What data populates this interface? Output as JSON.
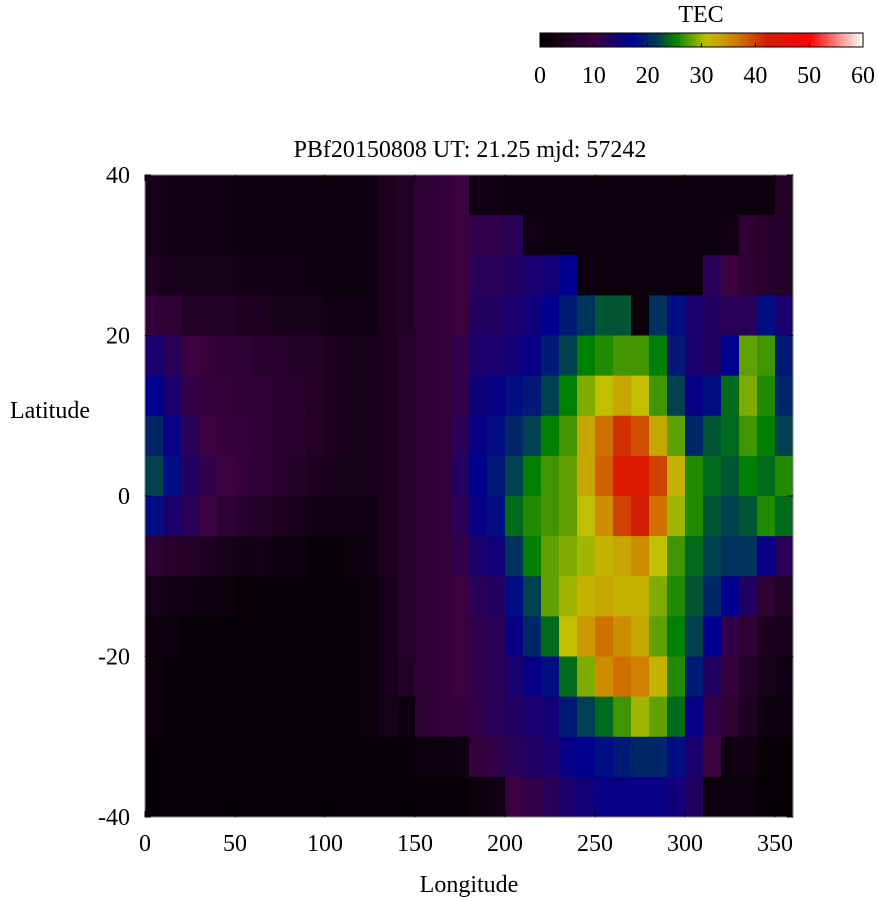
{
  "chart_data": {
    "type": "heatmap",
    "title": "PBf20150808  UT: 21.25  mjd: 57242",
    "xlabel": "Longitude",
    "ylabel": "Latitude",
    "xlim": [
      0,
      360
    ],
    "ylim": [
      -40,
      40
    ],
    "xticks": [
      "0",
      "50",
      "100",
      "150",
      "200",
      "250",
      "300",
      "350"
    ],
    "yticks": [
      "40",
      "20",
      "0",
      "-20",
      "-40"
    ],
    "colorbar": {
      "label": "TEC",
      "range": [
        0,
        60
      ],
      "ticks": [
        "0",
        "10",
        "20",
        "30",
        "40",
        "50",
        "60"
      ],
      "stops": [
        [
          0,
          "#000000"
        ],
        [
          10,
          "#3a0040"
        ],
        [
          17,
          "#000090"
        ],
        [
          22,
          "#004050"
        ],
        [
          25,
          "#008000"
        ],
        [
          31,
          "#c0c000"
        ],
        [
          36,
          "#d08000"
        ],
        [
          42,
          "#d02000"
        ],
        [
          50,
          "#ff0000"
        ],
        [
          60,
          "#ffffff"
        ]
      ]
    },
    "lon_edges_step": 10,
    "lat_edges_step": 5,
    "lat_rows_from_top": [
      "40..35",
      "35..30",
      "30..25",
      "25..20",
      "20..15",
      "15..10",
      "10..5",
      "5..0",
      "0..-5",
      "-5..-10",
      "-10..-15",
      "-15..-20",
      "-20..-25",
      "-25..-30",
      "-30..-35",
      "-35..-40"
    ],
    "values_by_lon_column": [
      [
        4,
        4,
        5,
        9,
        14,
        17,
        20,
        22,
        18,
        8,
        4,
        2,
        2,
        2,
        1,
        1
      ],
      [
        3,
        3,
        4,
        8,
        12,
        14,
        16,
        18,
        14,
        7,
        3,
        2,
        1,
        1,
        1,
        1
      ],
      [
        3,
        3,
        4,
        6,
        10,
        11,
        12,
        13,
        12,
        6,
        3,
        1,
        1,
        1,
        1,
        1
      ],
      [
        3,
        3,
        4,
        6,
        9,
        9,
        10,
        11,
        10,
        5,
        2,
        1,
        1,
        1,
        1,
        1
      ],
      [
        3,
        3,
        4,
        6,
        8,
        9,
        9,
        10,
        8,
        4,
        2,
        1,
        1,
        1,
        1,
        1
      ],
      [
        2,
        2,
        3,
        5,
        8,
        8,
        9,
        9,
        7,
        3,
        1,
        1,
        1,
        1,
        1,
        1
      ],
      [
        2,
        2,
        3,
        5,
        7,
        8,
        8,
        8,
        6,
        3,
        1,
        1,
        1,
        1,
        1,
        1
      ],
      [
        2,
        2,
        3,
        4,
        7,
        7,
        7,
        7,
        5,
        2,
        1,
        1,
        1,
        1,
        1,
        1
      ],
      [
        2,
        2,
        3,
        4,
        6,
        7,
        7,
        6,
        4,
        2,
        1,
        1,
        1,
        1,
        1,
        1
      ],
      [
        2,
        2,
        2,
        4,
        6,
        6,
        6,
        5,
        3,
        1,
        1,
        1,
        1,
        1,
        1,
        1
      ],
      [
        2,
        2,
        2,
        3,
        5,
        5,
        5,
        4,
        3,
        1,
        1,
        1,
        1,
        1,
        1,
        1
      ],
      [
        2,
        2,
        2,
        3,
        4,
        4,
        4,
        4,
        3,
        2,
        1,
        1,
        1,
        1,
        1,
        1
      ],
      [
        3,
        3,
        3,
        3,
        4,
        4,
        4,
        4,
        3,
        3,
        2,
        2,
        2,
        2,
        1,
        1
      ],
      [
        5,
        5,
        5,
        5,
        5,
        5,
        5,
        5,
        5,
        5,
        4,
        4,
        4,
        4,
        1,
        1
      ],
      [
        6,
        6,
        6,
        6,
        7,
        7,
        7,
        7,
        7,
        7,
        7,
        7,
        6,
        2,
        1,
        1
      ],
      [
        8,
        8,
        8,
        8,
        8,
        8,
        8,
        8,
        8,
        8,
        8,
        8,
        8,
        8,
        2,
        1
      ],
      [
        9,
        9,
        9,
        9,
        9,
        9,
        9,
        9,
        9,
        9,
        9,
        9,
        9,
        9,
        2,
        1
      ],
      [
        10,
        10,
        10,
        10,
        11,
        11,
        12,
        13,
        12,
        11,
        10,
        10,
        10,
        9,
        3,
        1
      ],
      [
        3,
        11,
        12,
        13,
        14,
        15,
        16,
        17,
        16,
        14,
        12,
        11,
        11,
        11,
        9,
        2
      ],
      [
        3,
        11,
        12,
        13,
        14,
        16,
        18,
        19,
        18,
        15,
        13,
        12,
        12,
        12,
        11,
        3
      ],
      [
        2,
        12,
        13,
        14,
        15,
        18,
        20,
        22,
        24,
        21,
        18,
        16,
        14,
        13,
        12,
        10
      ],
      [
        2,
        3,
        14,
        15,
        16,
        19,
        22,
        25,
        26,
        25,
        22,
        20,
        16,
        14,
        13,
        11
      ],
      [
        2,
        2,
        15,
        17,
        19,
        22,
        25,
        27,
        27,
        28,
        28,
        24,
        18,
        15,
        14,
        12
      ],
      [
        2,
        2,
        17,
        19,
        22,
        25,
        27,
        28,
        28,
        29,
        30,
        31,
        24,
        19,
        16,
        14
      ],
      [
        2,
        2,
        2,
        21,
        25,
        29,
        33,
        33,
        31,
        30,
        32,
        34,
        29,
        22,
        17,
        15
      ],
      [
        2,
        2,
        2,
        23,
        26,
        31,
        37,
        38,
        35,
        32,
        33,
        37,
        35,
        24,
        18,
        16
      ],
      [
        2,
        2,
        2,
        23,
        27,
        33,
        41,
        44,
        40,
        33,
        32,
        35,
        37,
        27,
        19,
        16
      ],
      [
        2,
        2,
        2,
        2,
        27,
        31,
        39,
        44,
        42,
        35,
        32,
        33,
        36,
        30,
        20,
        16
      ],
      [
        2,
        2,
        2,
        21,
        25,
        27,
        33,
        40,
        37,
        31,
        29,
        28,
        32,
        28,
        20,
        16
      ],
      [
        2,
        2,
        2,
        18,
        19,
        22,
        28,
        32,
        30,
        27,
        26,
        25,
        26,
        24,
        18,
        15
      ],
      [
        2,
        2,
        2,
        14,
        14,
        16,
        20,
        26,
        26,
        24,
        23,
        22,
        19,
        16,
        14,
        13
      ],
      [
        2,
        2,
        12,
        13,
        13,
        18,
        23,
        24,
        23,
        22,
        20,
        17,
        13,
        11,
        10,
        2
      ],
      [
        2,
        3,
        10,
        12,
        17,
        24,
        24,
        23,
        22,
        21,
        17,
        11,
        9,
        8,
        3,
        2
      ],
      [
        2,
        8,
        8,
        12,
        28,
        29,
        27,
        25,
        23,
        21,
        13,
        8,
        6,
        5,
        3,
        2
      ],
      [
        2,
        7,
        7,
        18,
        27,
        26,
        25,
        24,
        26,
        16,
        8,
        5,
        4,
        2,
        1,
        1
      ],
      [
        6,
        6,
        6,
        14,
        19,
        20,
        22,
        26,
        24,
        12,
        6,
        4,
        3,
        2,
        1,
        1
      ]
    ]
  }
}
